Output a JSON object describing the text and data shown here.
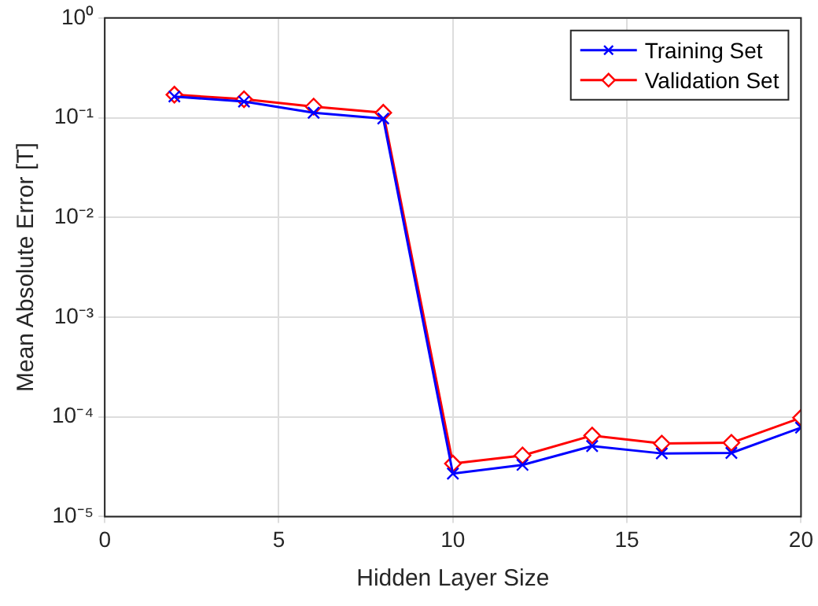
{
  "chart_data": {
    "type": "line",
    "xlabel": "Hidden Layer Size",
    "ylabel": "Mean Absolute Error [T]",
    "x": [
      2,
      4,
      6,
      8,
      10,
      12,
      14,
      16,
      18,
      20
    ],
    "series": [
      {
        "name": "Training Set",
        "color": "#0000ff",
        "marker": "cross",
        "values": [
          0.163,
          0.145,
          0.112,
          0.098,
          2.7e-05,
          3.3e-05,
          5.1e-05,
          4.3e-05,
          4.35e-05,
          7.8e-05
        ]
      },
      {
        "name": "Validation Set",
        "color": "#ff0000",
        "marker": "diamond",
        "values": [
          0.17,
          0.153,
          0.129,
          0.112,
          3.4e-05,
          4.1e-05,
          6.5e-05,
          5.4e-05,
          5.5e-05,
          9.8e-05
        ]
      }
    ],
    "xlim": [
      0,
      20
    ],
    "xticks": [
      0,
      5,
      10,
      15,
      20
    ],
    "ylim": [
      1e-05,
      1
    ],
    "yticks": [
      {
        "value": 1e-05,
        "label": "10⁻⁵"
      },
      {
        "value": 0.0001,
        "label": "10⁻⁴"
      },
      {
        "value": 0.001,
        "label": "10⁻³"
      },
      {
        "value": 0.01,
        "label": "10⁻²"
      },
      {
        "value": 0.1,
        "label": "10⁻¹"
      },
      {
        "value": 1,
        "label": "10⁰"
      }
    ],
    "log": "y",
    "grid": true,
    "legend": "top right",
    "line_style": "solid"
  }
}
